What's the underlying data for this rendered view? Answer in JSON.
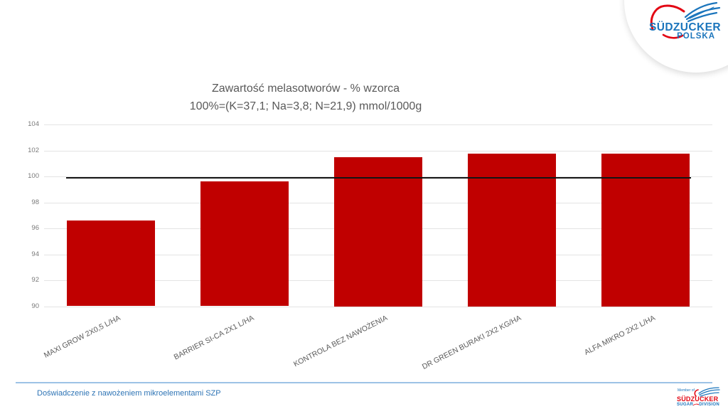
{
  "chart_data": {
    "type": "bar",
    "title": "Zawartość melasotworów - % wzorca",
    "subtitle": "100%=(K=37,1; Na=3,8; N=21,9) mmol/1000g",
    "categories": [
      "MAXI GROW 2X0,5 L/HA",
      "BARRIER SI-CA 2X1 L/HA",
      "KONTROLA BEZ NAWOŻENIA",
      "DR GREEN BURAKI 2X2 KG/HA",
      "ALFA MIKRO 2X2 L/HA"
    ],
    "values": [
      96.6,
      99.6,
      101.5,
      101.75,
      101.75
    ],
    "ylim": [
      90,
      104
    ],
    "ytick_step": 2,
    "reference_line": 99.9,
    "bar_color": "#C00000",
    "reference_line_color": "#141414",
    "gridline_color": "#e4e4e4",
    "grid": true,
    "legend": "none",
    "xlabel": "",
    "ylabel": ""
  },
  "footer": {
    "text": "Doświadczenie z nawożeniem mikroelementami SZP",
    "accent_color": "#2E74B5"
  },
  "logos": {
    "top_right": {
      "brand": "SÜDZUCKER",
      "region": "POLSKA",
      "blue": "#1B75BC",
      "red": "#E30613"
    },
    "bottom_right": {
      "member": "Member of",
      "brand": "SÜDZUCKER",
      "division_left": "SUGAR",
      "division_right": "DIVISION"
    }
  }
}
